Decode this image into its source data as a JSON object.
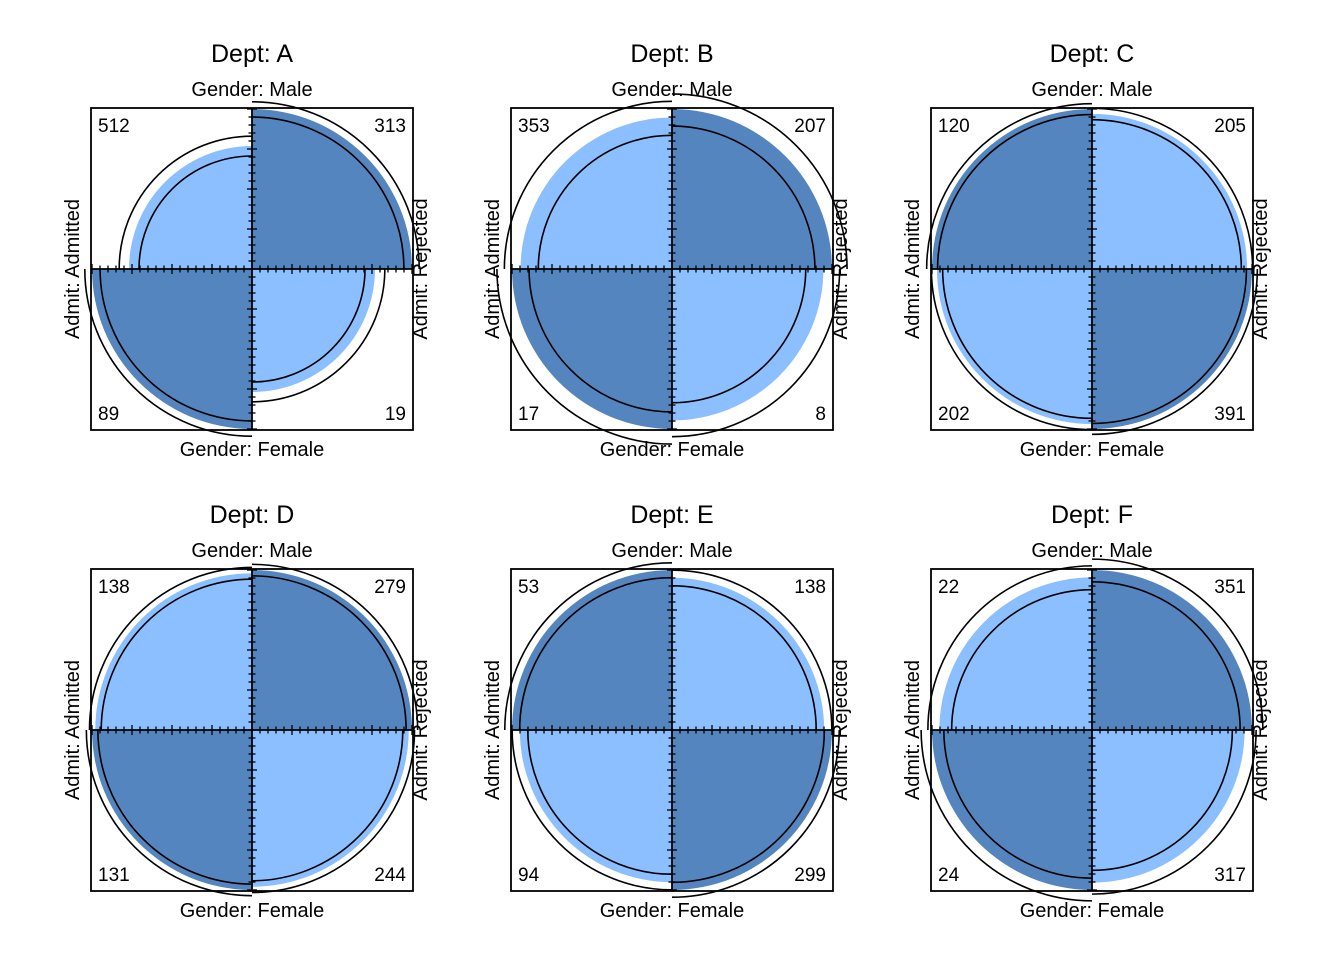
{
  "chart_data": {
    "type": "fourfold",
    "variables": {
      "row": "Gender",
      "col": "Admit",
      "stratum": "Dept"
    },
    "colors": {
      "dark": "#5585BF",
      "light": "#8CBFFF",
      "frame": "#000000"
    },
    "panels": [
      {
        "title": "Dept: A",
        "top_label": "Gender: Male",
        "bottom_label": "Gender: Female",
        "left_label": "Admit: Admitted",
        "right_label": "Admit: Rejected",
        "counts": {
          "male_admitted": 512,
          "male_rejected": 313,
          "female_admitted": 89,
          "female_rejected": 19
        },
        "shade": {
          "male_admitted": "light",
          "male_rejected": "dark",
          "female_admitted": "dark",
          "female_rejected": "light"
        }
      },
      {
        "title": "Dept: B",
        "top_label": "Gender: Male",
        "bottom_label": "Gender: Female",
        "left_label": "Admit: Admitted",
        "right_label": "Admit: Rejected",
        "counts": {
          "male_admitted": 353,
          "male_rejected": 207,
          "female_admitted": 17,
          "female_rejected": 8
        },
        "shade": {
          "male_admitted": "light",
          "male_rejected": "dark",
          "female_admitted": "dark",
          "female_rejected": "light"
        }
      },
      {
        "title": "Dept: C",
        "top_label": "Gender: Male",
        "bottom_label": "Gender: Female",
        "left_label": "Admit: Admitted",
        "right_label": "Admit: Rejected",
        "counts": {
          "male_admitted": 120,
          "male_rejected": 205,
          "female_admitted": 202,
          "female_rejected": 391
        },
        "shade": {
          "male_admitted": "dark",
          "male_rejected": "light",
          "female_admitted": "light",
          "female_rejected": "dark"
        }
      },
      {
        "title": "Dept: D",
        "top_label": "Gender: Male",
        "bottom_label": "Gender: Female",
        "left_label": "Admit: Admitted",
        "right_label": "Admit: Rejected",
        "counts": {
          "male_admitted": 138,
          "male_rejected": 279,
          "female_admitted": 131,
          "female_rejected": 244
        },
        "shade": {
          "male_admitted": "light",
          "male_rejected": "dark",
          "female_admitted": "dark",
          "female_rejected": "light"
        }
      },
      {
        "title": "Dept: E",
        "top_label": "Gender: Male",
        "bottom_label": "Gender: Female",
        "left_label": "Admit: Admitted",
        "right_label": "Admit: Rejected",
        "counts": {
          "male_admitted": 53,
          "male_rejected": 138,
          "female_admitted": 94,
          "female_rejected": 299
        },
        "shade": {
          "male_admitted": "dark",
          "male_rejected": "light",
          "female_admitted": "light",
          "female_rejected": "dark"
        }
      },
      {
        "title": "Dept: F",
        "top_label": "Gender: Male",
        "bottom_label": "Gender: Female",
        "left_label": "Admit: Admitted",
        "right_label": "Admit: Rejected",
        "counts": {
          "male_admitted": 22,
          "male_rejected": 351,
          "female_admitted": 24,
          "female_rejected": 317
        },
        "shade": {
          "male_admitted": "light",
          "male_rejected": "dark",
          "female_admitted": "dark",
          "female_rejected": "light"
        }
      }
    ]
  }
}
